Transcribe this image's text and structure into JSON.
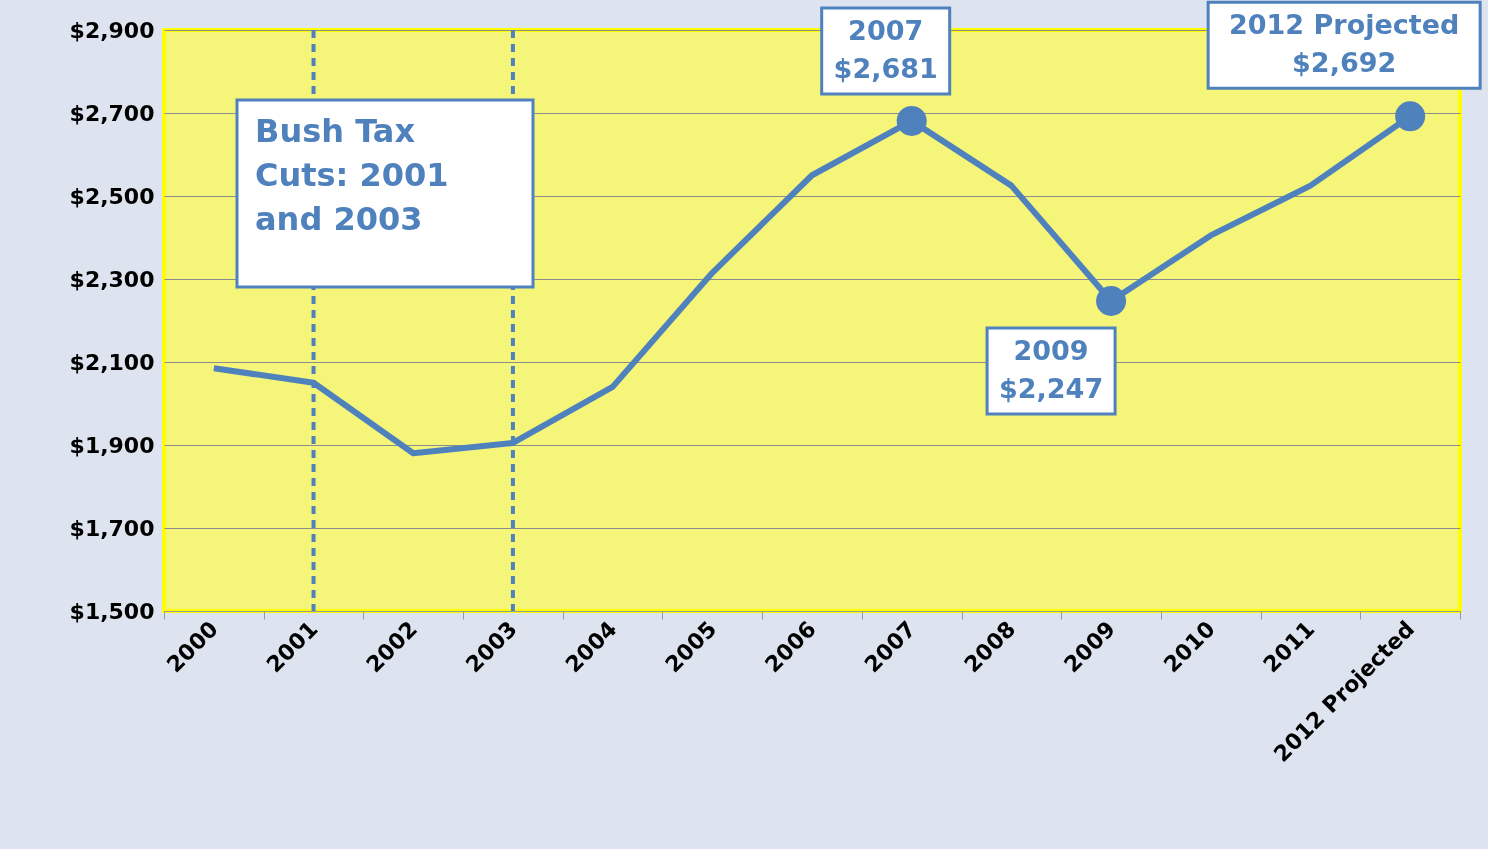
{
  "chart_data": {
    "type": "line",
    "categories": [
      "2000",
      "2001",
      "2002",
      "2003",
      "2004",
      "2005",
      "2006",
      "2007",
      "2008",
      "2009",
      "2010",
      "2011",
      "2012 Projected"
    ],
    "series": [
      {
        "color": "#4f81bd",
        "values": [
          2085,
          2050,
          1880,
          1905,
          2040,
          2315,
          2550,
          2681,
          2525,
          2247,
          2405,
          2525,
          2692
        ]
      }
    ],
    "ylim": [
      1500,
      2900
    ],
    "yticks": [
      {
        "value": 1500,
        "label": "$1,500"
      },
      {
        "value": 1700,
        "label": "$1,700"
      },
      {
        "value": 1900,
        "label": "$1,900"
      },
      {
        "value": 2100,
        "label": "$2,100"
      },
      {
        "value": 2300,
        "label": "$2,300"
      },
      {
        "value": 2500,
        "label": "$2,500"
      },
      {
        "value": 2700,
        "label": "$2,700"
      },
      {
        "value": 2900,
        "label": "$2,900"
      }
    ],
    "grid": "y",
    "marker": "none",
    "line_style": "solid",
    "ref_lines": [
      {
        "axis": "x",
        "value": "2001",
        "color": "#4f81bd",
        "line_style": "dashed"
      },
      {
        "axis": "x",
        "value": "2003",
        "color": "#4f81bd",
        "line_style": "dashed"
      }
    ],
    "annotations": [
      "Bush Tax\nCuts: 2001\nand 2003",
      {
        "text": "2007\n$2,681",
        "x": "2007",
        "y": 2681
      },
      {
        "text": "2009\n$2,247",
        "x": "2009",
        "y": 2247
      },
      {
        "text": "2012 Projected\n$2,692",
        "x": "2012 Projected",
        "y": 2692
      }
    ]
  }
}
